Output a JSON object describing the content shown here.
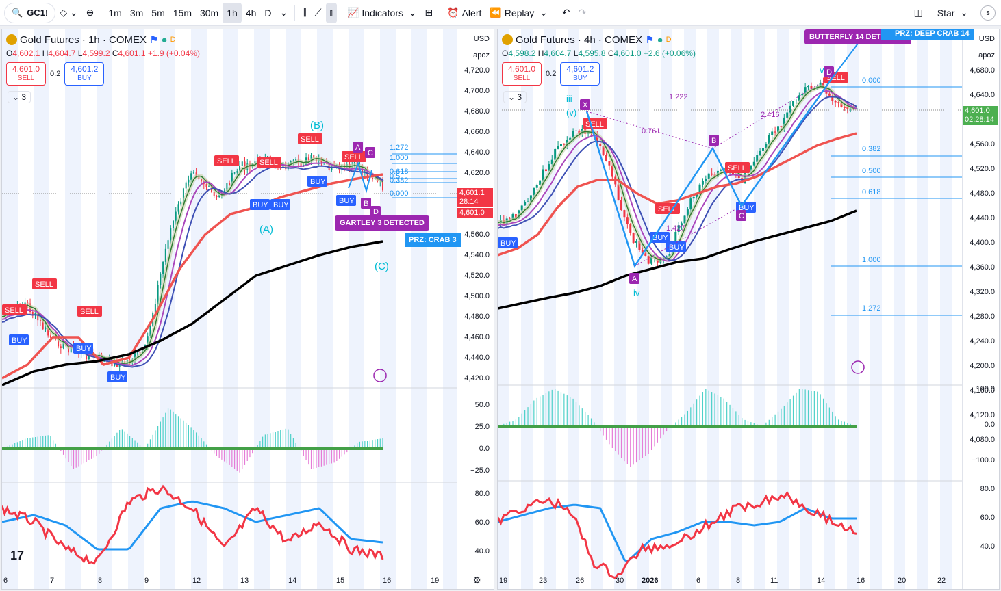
{
  "toolbar": {
    "symbol": "GC1!",
    "timeframes": [
      "1m",
      "3m",
      "5m",
      "15m",
      "30m",
      "1h",
      "4h",
      "D"
    ],
    "active_timeframe": "1h",
    "indicators": "Indicators",
    "alert": "Alert",
    "replay": "Replay",
    "star": "Star",
    "avatar": "s"
  },
  "pane1": {
    "title": "Gold Futures · 1h · COMEX",
    "ohlc": {
      "o": "4,602.1",
      "h": "4,604.7",
      "l": "4,599.2",
      "c": "4,601.1",
      "chg": "+1.9 (+0.04%)"
    },
    "sell_price": "4,601.0",
    "sell_label": "SELL",
    "spread": "0.2",
    "buy_price": "4,601.2",
    "buy_label": "BUY",
    "ind_count": "3",
    "currency": "USD",
    "scale_mode": "apoz",
    "price_ticks": [
      "4,720.0",
      "4,700.0",
      "4,680.0",
      "4,660.0",
      "4,640.0",
      "4,620.0",
      "4,600.0",
      "4,580.0",
      "4,560.0",
      "4,540.0",
      "4,520.0",
      "4,500.0",
      "4,480.0",
      "4,460.0",
      "4,440.0",
      "4,420.0"
    ],
    "last_price": "4,601.1",
    "countdown": "28:14",
    "last_price2": "4,601.0",
    "osc_ticks": [
      "50.0",
      "25.0",
      "0.0",
      "−25.0"
    ],
    "rsi_ticks": [
      "80.0",
      "60.0",
      "40.0"
    ],
    "x_ticks": [
      "6",
      "7",
      "8",
      "9",
      "12",
      "13",
      "14",
      "15",
      "16",
      "19"
    ],
    "fibs": [
      "1.272",
      "1.000",
      "0.618",
      "0.5",
      "0.382",
      "0.000"
    ],
    "detect": "GARTLEY 3 DETECTED",
    "prz": "PRZ: CRAB 3",
    "waves": {
      "a": "(A)",
      "b": "(B)",
      "c": "(C)"
    },
    "labels": {
      "sell": "SELL",
      "buy": "BUY",
      "a": "A",
      "b": "B",
      "c": "C",
      "d": "D"
    }
  },
  "pane2": {
    "title": "Gold Futures · 4h · COMEX",
    "ohlc": {
      "o": "4,598.2",
      "h": "4,604.7",
      "l": "4,595.8",
      "c": "4,601.0",
      "chg": "+2.6 (+0.06%)"
    },
    "sell_price": "4,601.0",
    "sell_label": "SELL",
    "spread": "0.2",
    "buy_price": "4,601.2",
    "buy_label": "BUY",
    "ind_count": "3",
    "currency": "USD",
    "scale_mode": "apoz",
    "price_ticks": [
      "4,680.0",
      "4,640.0",
      "4,600.0",
      "4,560.0",
      "4,520.0",
      "4,480.0",
      "4,440.0",
      "4,400.0",
      "4,360.0",
      "4,320.0",
      "4,280.0",
      "4,240.0",
      "4,200.0",
      "4,160.0",
      "4,120.0",
      "4,080.0"
    ],
    "last_price": "4,601.0",
    "countdown": "02:28:14",
    "osc_ticks": [
      "100.0",
      "0.0",
      "−100.0"
    ],
    "rsi_ticks": [
      "80.0",
      "60.0",
      "40.0"
    ],
    "x_ticks": [
      "19",
      "23",
      "26",
      "30",
      "2026",
      "6",
      "8",
      "11",
      "14",
      "16",
      "20",
      "22"
    ],
    "fibs": [
      "0.000",
      "0.382",
      "0.500",
      "0.618",
      "1.000",
      "1.272"
    ],
    "ratios": [
      "1.222",
      "0.761",
      "2.416",
      "1.427"
    ],
    "detect": "BUTTERFLY 14 DETECTED",
    "prz": "PRZ: DEEP CRAB 14",
    "waves": {
      "iii": "iii",
      "v": "(v)",
      "iv": "iv",
      "v2": "v"
    },
    "labels": {
      "sell": "SELL",
      "buy": "BUY",
      "x": "X",
      "a": "A",
      "b": "B",
      "c": "C",
      "d": "D"
    }
  }
}
